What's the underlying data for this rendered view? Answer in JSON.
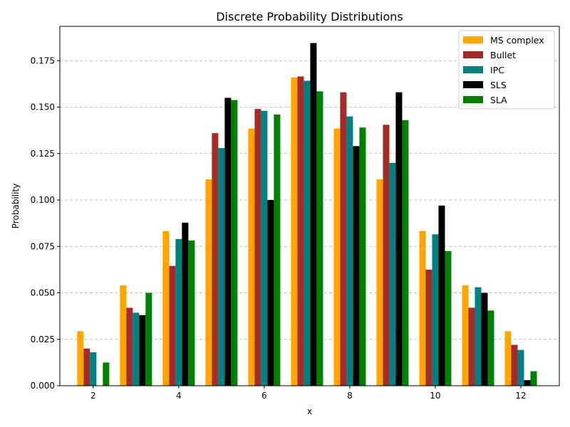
{
  "chart_data": {
    "type": "bar",
    "title": "Discrete Probability Distributions",
    "xlabel": "x",
    "ylabel": "Probability",
    "x": [
      2,
      3,
      4,
      5,
      6,
      7,
      8,
      9,
      10,
      11,
      12
    ],
    "xticks": [
      "2",
      "4",
      "6",
      "8",
      "10",
      "12"
    ],
    "xlim": [
      1.22,
      12.9
    ],
    "ylim": [
      0,
      0.1935
    ],
    "yticks": [
      "0.000",
      "0.025",
      "0.050",
      "0.075",
      "0.100",
      "0.125",
      "0.150",
      "0.175"
    ],
    "grid": "y-dashed",
    "legend_position": "top-right",
    "series": [
      {
        "name": "MS complex",
        "color": "#ffa500",
        "values": [
          0.0293,
          0.0541,
          0.0833,
          0.1111,
          0.1385,
          0.166,
          0.1385,
          0.1111,
          0.0833,
          0.0541,
          0.0293
        ]
      },
      {
        "name": "Bullet",
        "color": "#a52a2a",
        "values": [
          0.02,
          0.042,
          0.0645,
          0.136,
          0.149,
          0.1665,
          0.158,
          0.1405,
          0.0625,
          0.042,
          0.022
        ]
      },
      {
        "name": "IPC",
        "color": "#008080",
        "values": [
          0.018,
          0.0393,
          0.079,
          0.128,
          0.148,
          0.1642,
          0.145,
          0.12,
          0.0815,
          0.053,
          0.0193
        ]
      },
      {
        "name": "SLS",
        "color": "#000000",
        "values": [
          0.0,
          0.038,
          0.0878,
          0.155,
          0.1,
          0.1845,
          0.129,
          0.158,
          0.097,
          0.05,
          0.003
        ]
      },
      {
        "name": "SLA",
        "color": "#008000",
        "values": [
          0.0125,
          0.05,
          0.0782,
          0.1538,
          0.146,
          0.1585,
          0.139,
          0.143,
          0.0725,
          0.0405,
          0.0078
        ]
      }
    ]
  }
}
